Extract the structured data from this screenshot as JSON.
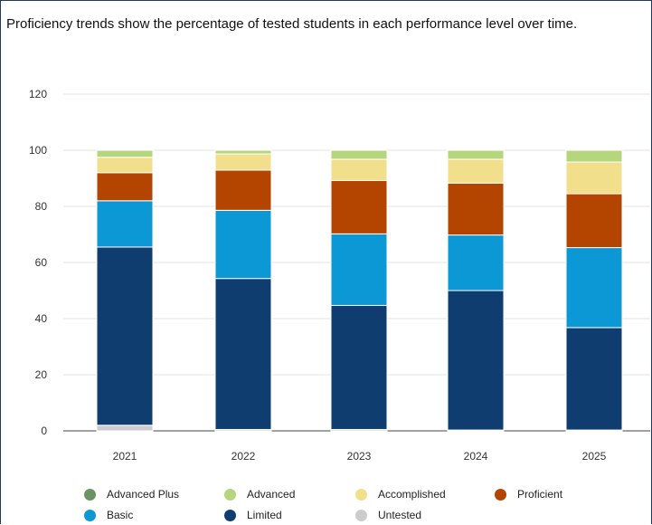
{
  "description": "Proficiency trends show the percentage of tested students in each performance level over time.",
  "chart_data": {
    "type": "bar",
    "stacked": true,
    "categories": [
      "2021",
      "2022",
      "2023",
      "2024",
      "2025"
    ],
    "ylim": [
      0,
      120
    ],
    "yticks": [
      0,
      20,
      40,
      60,
      80,
      100,
      120
    ],
    "grid": true,
    "legend_position": "bottom",
    "series": [
      {
        "name": "Untested",
        "color": "#cccccc",
        "values": [
          2,
          0.5,
          0.5,
          0.3,
          0.3
        ]
      },
      {
        "name": "Limited",
        "color": "#0f3d70",
        "values": [
          63.5,
          53.8,
          44.2,
          49.7,
          36.5
        ]
      },
      {
        "name": "Basic",
        "color": "#0b98d4",
        "values": [
          16.5,
          24.3,
          25.5,
          19.8,
          28.5
        ]
      },
      {
        "name": "Proficient",
        "color": "#b34500",
        "values": [
          10,
          14.3,
          19,
          18.5,
          19.2
        ]
      },
      {
        "name": "Accomplished",
        "color": "#f2df8c",
        "values": [
          5.5,
          5.8,
          7.6,
          8.5,
          11.3
        ]
      },
      {
        "name": "Advanced",
        "color": "#b5d67d",
        "values": [
          2.5,
          1.3,
          3.2,
          3.2,
          4.2
        ]
      },
      {
        "name": "Advanced Plus",
        "color": "#6a9464",
        "values": [
          0,
          0,
          0,
          0,
          0
        ]
      }
    ]
  },
  "legend": [
    {
      "name": "Advanced Plus",
      "color": "#6a9464"
    },
    {
      "name": "Advanced",
      "color": "#b5d67d"
    },
    {
      "name": "Accomplished",
      "color": "#f2df8c"
    },
    {
      "name": "Proficient",
      "color": "#b34500"
    },
    {
      "name": "Basic",
      "color": "#0b98d4"
    },
    {
      "name": "Limited",
      "color": "#0f3d70"
    },
    {
      "name": "Untested",
      "color": "#cccccc"
    }
  ]
}
